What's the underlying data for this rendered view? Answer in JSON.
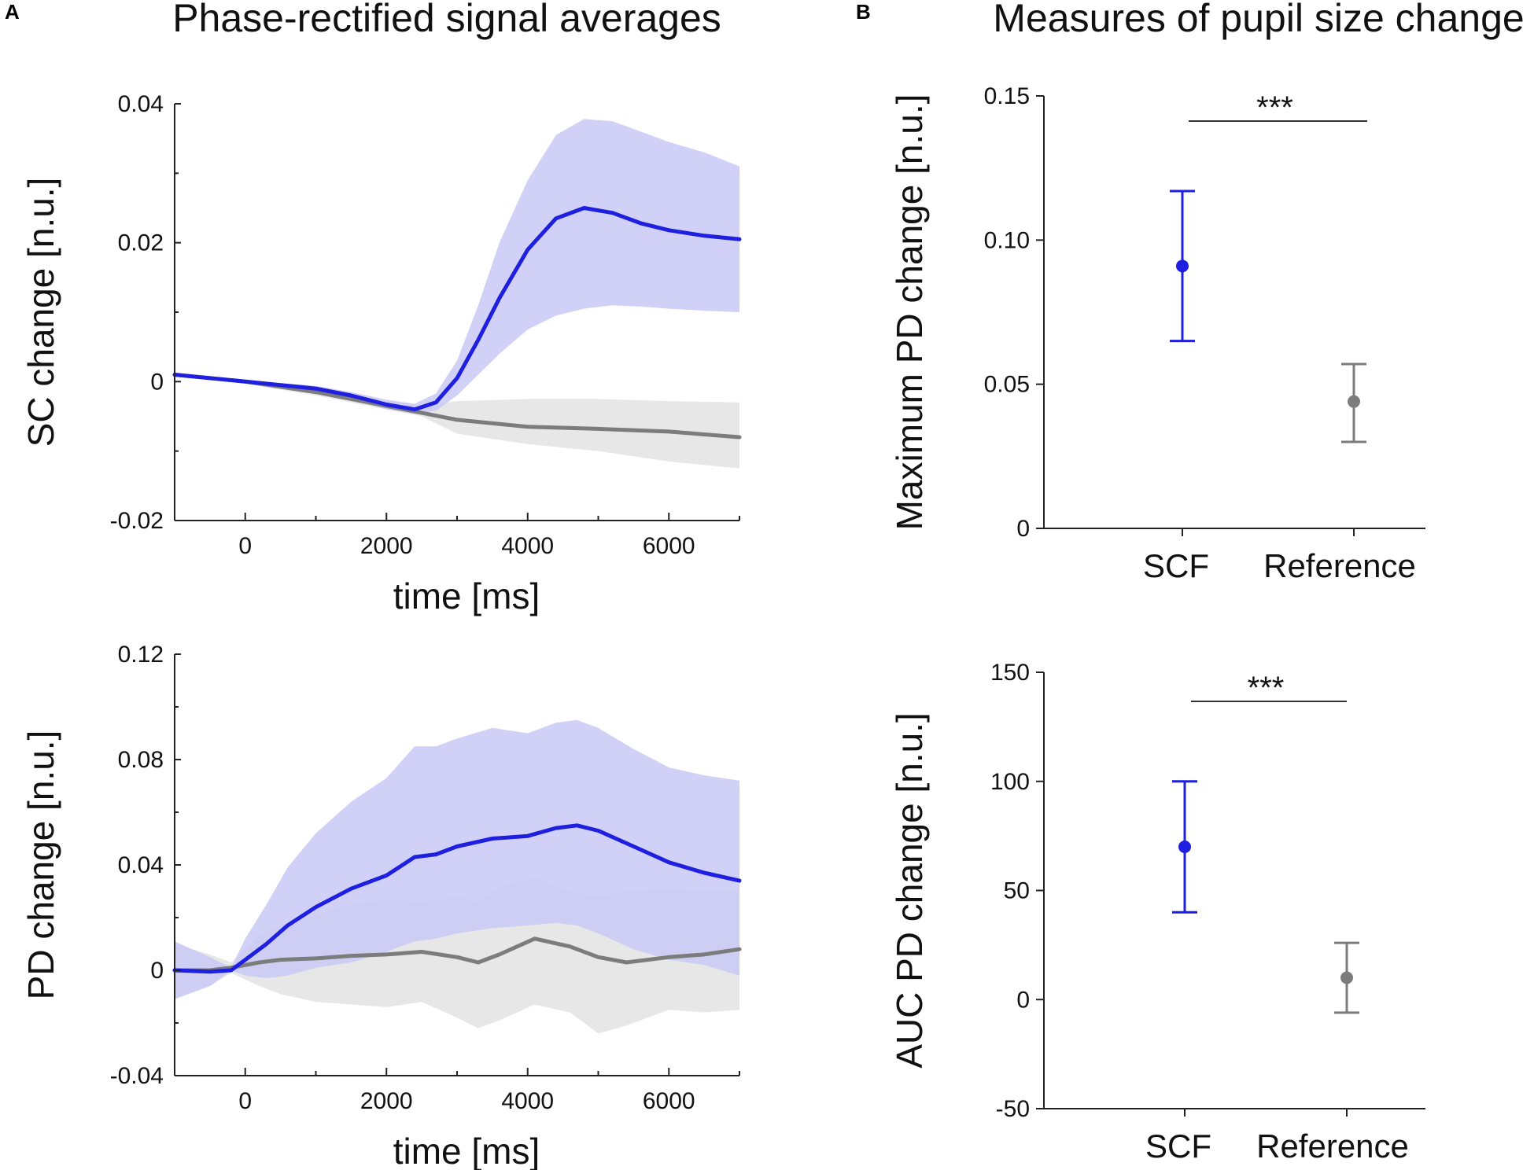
{
  "panels": {
    "a": {
      "letter": "A",
      "title": "Phase-rectified signal averages"
    },
    "b": {
      "letter": "B",
      "title": "Measures of pupil size change"
    }
  },
  "colors": {
    "scf": "#1f1fe0",
    "scf_band": "#c9c9f6",
    "reference": "#7c7c7c",
    "reference_band": "#e4e4e4"
  },
  "chart_data": [
    {
      "id": "sc",
      "type": "line",
      "ylabel": "SC change [n.u.]",
      "xlabel": "time [ms]",
      "xlim": [
        -1000,
        7000
      ],
      "ylim": [
        -0.02,
        0.04
      ],
      "xticks": [
        0,
        2000,
        4000,
        6000
      ],
      "xtick_labels": [
        "0",
        "2000",
        "4000",
        "6000"
      ],
      "yticks": [
        -0.02,
        0,
        0.02,
        0.04
      ],
      "ytick_labels": [
        "-0.02",
        "0",
        "0.02",
        "0.04"
      ],
      "series": [
        {
          "name": "Reference",
          "x": [
            -1000,
            0,
            1000,
            2000,
            2500,
            3000,
            4000,
            5000,
            6000,
            7000
          ],
          "values": [
            0.001,
            0.0,
            -0.0015,
            -0.0035,
            -0.0045,
            -0.0055,
            -0.0065,
            -0.0068,
            -0.0072,
            -0.008
          ],
          "lower": [
            0.0008,
            -0.0003,
            -0.002,
            -0.004,
            -0.005,
            -0.0075,
            -0.009,
            -0.01,
            -0.0115,
            -0.0125
          ],
          "upper": [
            0.0012,
            0.0003,
            -0.001,
            -0.0028,
            -0.0035,
            -0.0028,
            -0.0025,
            -0.0025,
            -0.0028,
            -0.003
          ]
        },
        {
          "name": "SCF",
          "x": [
            -1000,
            0,
            1000,
            1500,
            2000,
            2400,
            2700,
            3000,
            3300,
            3600,
            4000,
            4400,
            4800,
            5200,
            5600,
            6000,
            6500,
            7000
          ],
          "values": [
            0.001,
            0.0,
            -0.001,
            -0.002,
            -0.0033,
            -0.004,
            -0.003,
            0.0005,
            0.006,
            0.012,
            0.019,
            0.0235,
            0.025,
            0.0243,
            0.0228,
            0.0218,
            0.021,
            0.0205
          ],
          "lower": [
            0.0009,
            -0.0002,
            -0.0014,
            -0.0025,
            -0.004,
            -0.0046,
            -0.0042,
            -0.002,
            0.001,
            0.004,
            0.0075,
            0.0095,
            0.0105,
            0.011,
            0.0108,
            0.0105,
            0.0102,
            0.01
          ],
          "upper": [
            0.0011,
            0.0002,
            -0.0006,
            -0.0015,
            -0.0026,
            -0.0032,
            -0.0017,
            0.003,
            0.011,
            0.02,
            0.029,
            0.0355,
            0.0378,
            0.0375,
            0.036,
            0.0345,
            0.033,
            0.031
          ]
        }
      ]
    },
    {
      "id": "pd",
      "type": "line",
      "ylabel": "PD change [n.u.]",
      "xlabel": "time [ms]",
      "xlim": [
        -1000,
        7000
      ],
      "ylim": [
        -0.04,
        0.12
      ],
      "xticks": [
        0,
        2000,
        4000,
        6000
      ],
      "xtick_labels": [
        "0",
        "2000",
        "4000",
        "6000"
      ],
      "yticks": [
        -0.04,
        0,
        0.04,
        0.08,
        0.12
      ],
      "ytick_labels": [
        "-0.04",
        "0",
        "0.04",
        "0.08",
        "0.12"
      ],
      "series": [
        {
          "name": "Reference",
          "x": [
            -1000,
            -500,
            -200,
            200,
            500,
            1000,
            1500,
            2000,
            2500,
            3000,
            3300,
            3600,
            4100,
            4600,
            5000,
            5400,
            6000,
            6500,
            7000
          ],
          "values": [
            0.0,
            0.0,
            0.001,
            0.003,
            0.004,
            0.0045,
            0.0055,
            0.006,
            0.007,
            0.005,
            0.003,
            0.006,
            0.012,
            0.009,
            0.005,
            0.003,
            0.005,
            0.006,
            0.008
          ],
          "lower": [
            -0.01,
            -0.006,
            -0.001,
            -0.006,
            -0.009,
            -0.012,
            -0.013,
            -0.014,
            -0.012,
            -0.018,
            -0.022,
            -0.019,
            -0.013,
            -0.016,
            -0.024,
            -0.021,
            -0.015,
            -0.016,
            -0.015
          ],
          "upper": [
            0.01,
            0.006,
            0.003,
            0.013,
            0.017,
            0.021,
            0.025,
            0.027,
            0.026,
            0.028,
            0.026,
            0.032,
            0.035,
            0.03,
            0.028,
            0.03,
            0.031,
            0.03,
            0.03
          ]
        },
        {
          "name": "SCF",
          "x": [
            -1000,
            -500,
            -200,
            0,
            300,
            600,
            1000,
            1500,
            2000,
            2400,
            2700,
            3000,
            3500,
            4000,
            4400,
            4700,
            5000,
            5500,
            6000,
            6500,
            7000
          ],
          "values": [
            0.0,
            -0.0005,
            0.0,
            0.004,
            0.01,
            0.017,
            0.024,
            0.031,
            0.036,
            0.043,
            0.044,
            0.047,
            0.05,
            0.051,
            0.054,
            0.055,
            0.053,
            0.047,
            0.041,
            0.037,
            0.034
          ],
          "lower": [
            -0.011,
            -0.006,
            0.0,
            -0.002,
            -0.003,
            -0.002,
            0.001,
            0.003,
            0.007,
            0.011,
            0.012,
            0.014,
            0.016,
            0.017,
            0.018,
            0.017,
            0.014,
            0.008,
            0.004,
            0.002,
            -0.002
          ],
          "upper": [
            0.011,
            0.005,
            0.001,
            0.012,
            0.025,
            0.039,
            0.052,
            0.064,
            0.073,
            0.085,
            0.085,
            0.088,
            0.092,
            0.09,
            0.094,
            0.095,
            0.092,
            0.084,
            0.077,
            0.074,
            0.072
          ]
        }
      ]
    },
    {
      "id": "maxpd",
      "type": "scatter",
      "ylabel": "Maximum PD change [n.u.]",
      "ylim": [
        0,
        0.15
      ],
      "yticks": [
        0,
        0.05,
        0.1,
        0.15
      ],
      "ytick_labels": [
        "0",
        "0.05",
        "0.10",
        "0.15"
      ],
      "categories": [
        "SCF",
        "Reference"
      ],
      "values": [
        0.091,
        0.044
      ],
      "err_low": [
        0.065,
        0.03
      ],
      "err_high": [
        0.117,
        0.057
      ],
      "significance": "***"
    },
    {
      "id": "aucpd",
      "type": "scatter",
      "ylabel": "AUC PD change [n.u.]",
      "ylim": [
        -50,
        150
      ],
      "yticks": [
        -50,
        0,
        50,
        100,
        150
      ],
      "ytick_labels": [
        "-50",
        "0",
        "50",
        "100",
        "150"
      ],
      "categories": [
        "SCF",
        "Reference"
      ],
      "values": [
        70,
        10
      ],
      "err_low": [
        40,
        -6
      ],
      "err_high": [
        100,
        26
      ],
      "significance": "***"
    }
  ]
}
